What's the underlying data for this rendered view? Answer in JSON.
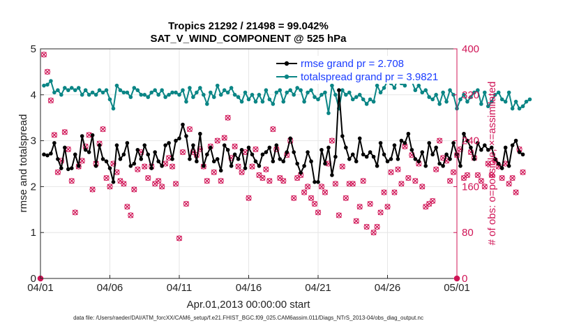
{
  "chart_data": {
    "type": "line",
    "title": "Tropics 21292 / 21498 = 99.042%",
    "subtitle": "SAT_V_WIND_COMPONENT @ 525 hPa",
    "xlabel": "Apr.01,2013 00:00:00 start",
    "ylabel": "rmse and totalspread",
    "y2label": "# of obs: o=possible; ×=assimilated",
    "footnote": "data file: /Users/raeder/DAI/ATM_forcXX/CAM6_setup/f.e21.FHIST_BGC.f09_025.CAM6assim.011/Diags_NTrS_2013-04/obs_diag_output.nc",
    "x_ticks": [
      "04/01",
      "04/06",
      "04/11",
      "04/16",
      "04/21",
      "04/26",
      "05/01"
    ],
    "xlim_days": [
      0,
      30
    ],
    "ylim": [
      0,
      5
    ],
    "y_ticks": [
      "0",
      "1",
      "2",
      "3",
      "4",
      "5"
    ],
    "y2lim": [
      0,
      400
    ],
    "y2_ticks": [
      "0",
      "80",
      "160",
      "240",
      "320",
      "400"
    ],
    "legend": [
      "rmse grand pr = 2.708",
      "totalspread grand pr = 3.9821"
    ],
    "colors": {
      "rmse": "#000000",
      "totalspread": "#0a8585",
      "obs": "#d01456",
      "legend_text": "#1a3cff"
    },
    "series": [
      {
        "name": "rmse",
        "start_day": 0.25,
        "step_days": 0.25,
        "values": [
          2.7,
          2.68,
          2.72,
          2.95,
          2.6,
          2.4,
          2.85,
          2.38,
          2.4,
          2.7,
          2.45,
          3.1,
          2.8,
          2.75,
          3.12,
          2.45,
          2.9,
          2.6,
          2.55,
          2.4,
          2.1,
          2.9,
          2.6,
          2.7,
          2.95,
          2.45,
          2.5,
          2.8,
          2.6,
          2.9,
          2.7,
          2.4,
          2.75,
          2.55,
          2.45,
          2.9,
          2.95,
          2.6,
          3.0,
          3.05,
          3.35,
          3.1,
          2.6,
          2.9,
          2.55,
          3.15,
          2.45,
          2.7,
          2.85,
          2.55,
          2.6,
          2.35,
          2.9,
          2.8,
          2.45,
          2.7,
          2.6,
          2.8,
          2.4,
          2.85,
          2.7,
          2.55,
          2.45,
          2.7,
          2.75,
          2.85,
          2.55,
          2.9,
          2.6,
          2.55,
          2.75,
          3.05,
          2.75,
          2.5,
          2.3,
          2.45,
          2.75,
          2.55,
          2.1,
          2.1,
          2.8,
          2.5,
          2.85,
          2.25,
          2.65,
          4.1,
          3.1,
          2.85,
          2.6,
          2.7,
          2.55,
          3.05,
          2.7,
          2.65,
          2.75,
          2.65,
          2.45,
          2.95,
          2.7,
          2.55,
          2.6,
          2.9,
          2.6,
          3.0,
          2.95,
          3.15,
          2.8,
          2.6,
          2.55,
          2.75,
          2.45,
          2.95,
          2.7,
          2.85,
          2.5,
          2.45,
          2.7,
          2.6,
          2.95,
          2.7,
          2.45,
          3.15,
          3.0,
          2.85,
          2.6,
          2.95,
          2.8,
          2.9,
          2.8,
          2.85,
          2.6,
          2.5,
          2.4,
          2.85,
          2.45,
          2.9,
          3.0,
          2.75,
          2.7
        ]
      },
      {
        "name": "totalspread",
        "start_day": 0.25,
        "step_days": 0.25,
        "values": [
          4.2,
          4.22,
          4.3,
          4.05,
          4.1,
          4.0,
          4.15,
          4.1,
          4.15,
          4.1,
          4.15,
          4.0,
          4.1,
          4.0,
          4.05,
          4.0,
          4.1,
          4.05,
          4.1,
          3.9,
          3.7,
          4.2,
          4.1,
          4.05,
          4.05,
          3.95,
          4.15,
          4.1,
          4.0,
          4.0,
          3.95,
          4.05,
          4.1,
          4.0,
          4.1,
          3.95,
          4.0,
          4.05,
          4.05,
          4.0,
          4.1,
          3.85,
          4.15,
          3.95,
          4.05,
          4.15,
          4.0,
          3.8,
          4.05,
          3.95,
          4.2,
          4.0,
          4.1,
          4.05,
          4.15,
          4.0,
          3.95,
          3.85,
          4.05,
          3.9,
          4.0,
          3.85,
          4.0,
          3.85,
          4.1,
          3.9,
          3.8,
          4.05,
          4.1,
          3.85,
          4.05,
          4.1,
          4.0,
          4.15,
          4.1,
          3.85,
          4.05,
          4.1,
          3.95,
          3.9,
          4.0,
          4.05,
          3.6,
          4.2,
          4.0,
          3.7,
          4.1,
          4.0,
          4.05,
          3.9,
          3.95,
          4.0,
          3.9,
          3.8,
          3.9,
          3.85,
          4.2,
          4.05,
          4.15,
          4.3,
          4.25,
          4.15,
          4.35,
          4.25,
          4.2,
          4.45,
          4.3,
          4.1,
          4.2,
          4.05,
          4.1,
          3.95,
          3.9,
          4.0,
          3.8,
          4.05,
          3.85,
          4.1,
          4.0,
          3.7,
          3.9,
          4.0,
          3.85,
          3.95,
          4.05,
          4.1,
          3.8,
          4.05,
          3.75,
          3.85,
          4.0,
          4.05,
          3.9,
          3.85,
          4.05,
          3.7,
          3.85,
          3.7,
          3.75,
          3.85,
          3.9
        ]
      },
      {
        "name": "obs_count",
        "start_day": 0.25,
        "step_days": 0.25,
        "values": [
          390,
          360,
          310,
          250,
          185,
          205,
          255,
          225,
          170,
          115,
          195,
          205,
          230,
          250,
          155,
          200,
          235,
          260,
          175,
          160,
          200,
          185,
          170,
          165,
          125,
          110,
          155,
          190,
          220,
          195,
          175,
          195,
          165,
          170,
          160,
          200,
          210,
          195,
          165,
          70,
          220,
          130,
          260,
          220,
          215,
          225,
          195,
          170,
          230,
          185,
          240,
          170,
          245,
          280,
          210,
          230,
          195,
          185,
          220,
          140,
          195,
          225,
          180,
          175,
          190,
          170,
          260,
          225,
          175,
          170,
          215,
          240,
          140,
          175,
          180,
          150,
          160,
          140,
          130,
          115,
          160,
          150,
          200,
          240,
          165,
          110,
          195,
          140,
          165,
          165,
          100,
          125,
          170,
          90,
          130,
          80,
          90,
          115,
          150,
          125,
          185,
          150,
          190,
          165,
          230,
          175,
          215,
          170,
          200,
          160,
          125,
          130,
          135,
          190,
          240,
          210,
          205,
          170,
          185,
          215,
          225,
          175,
          180,
          220,
          210,
          180,
          170,
          160,
          200,
          180,
          205,
          195,
          175,
          200,
          165,
          175,
          150,
          225,
          185
        ]
      }
    ]
  }
}
